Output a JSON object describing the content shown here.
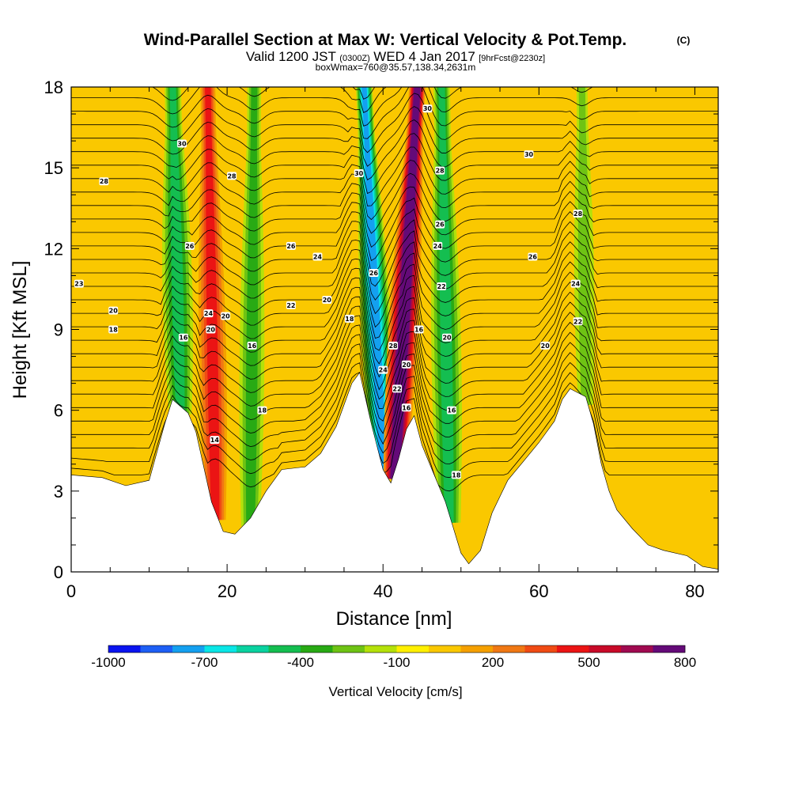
{
  "title": {
    "main": "Wind-Parallel Section at Max W: Vertical Velocity & Pot.Temp.",
    "copyright": "(C)",
    "valid_a": "Valid 1200 JST",
    "valid_utc": "(0300Z)",
    "valid_b": "WED 4 Jan 2017",
    "forecast": "[9hrFcst@2230z]",
    "box": "boxWmax=760@35.57,138.34,2631m"
  },
  "chart_data": {
    "type": "heatmap",
    "xlabel": "Distance [nm]",
    "ylabel": "Height [Kft MSL]",
    "xlim": [
      0,
      83
    ],
    "ylim": [
      0,
      18
    ],
    "x_ticks": [
      "0",
      "20",
      "40",
      "60",
      "80"
    ],
    "y_ticks": [
      "0",
      "3",
      "6",
      "9",
      "12",
      "15",
      "18"
    ],
    "colorbar": {
      "label": "Vertical Velocity [cm/s]",
      "tick_labels": [
        "-1000",
        "-700",
        "-400",
        "-100",
        "200",
        "500",
        "800"
      ],
      "colors": [
        "#0a14f0",
        "#1e5ff5",
        "#14a0f0",
        "#0ae6e6",
        "#0ad2a0",
        "#14be50",
        "#28aa14",
        "#6ec314",
        "#b4e10a",
        "#fff000",
        "#fac800",
        "#f5a000",
        "#f07814",
        "#f04b14",
        "#eb1414",
        "#c80a28",
        "#a00a50",
        "#640a78"
      ]
    },
    "terrain_kft": [
      [
        0,
        3.6
      ],
      [
        4,
        3.5
      ],
      [
        7,
        3.2
      ],
      [
        10,
        3.4
      ],
      [
        12,
        5.5
      ],
      [
        13,
        6.4
      ],
      [
        15,
        5.9
      ],
      [
        16,
        5.2
      ],
      [
        18,
        2.6
      ],
      [
        19.5,
        1.5
      ],
      [
        21,
        1.4
      ],
      [
        23,
        2.0
      ],
      [
        25,
        3.0
      ],
      [
        27,
        3.8
      ],
      [
        30,
        3.9
      ],
      [
        32,
        4.4
      ],
      [
        34,
        5.4
      ],
      [
        36,
        7.0
      ],
      [
        37,
        7.4
      ],
      [
        38.5,
        5.5
      ],
      [
        40,
        3.8
      ],
      [
        41,
        3.3
      ],
      [
        42,
        4.2
      ],
      [
        43,
        5.3
      ],
      [
        44,
        5.8
      ],
      [
        45,
        4.7
      ],
      [
        46,
        4.0
      ],
      [
        48,
        2.6
      ],
      [
        50,
        0.7
      ],
      [
        51,
        0.3
      ],
      [
        52.5,
        0.8
      ],
      [
        54,
        2.2
      ],
      [
        56,
        3.4
      ],
      [
        58,
        4.1
      ],
      [
        60,
        4.8
      ],
      [
        62,
        5.6
      ],
      [
        63,
        6.4
      ],
      [
        64,
        6.8
      ],
      [
        66,
        6.5
      ],
      [
        67,
        5.5
      ],
      [
        68,
        4.0
      ],
      [
        69,
        3.0
      ],
      [
        70,
        2.3
      ],
      [
        72,
        1.6
      ],
      [
        74,
        1.0
      ],
      [
        76,
        0.8
      ],
      [
        79,
        0.6
      ],
      [
        81,
        0.2
      ],
      [
        83,
        0.1
      ]
    ],
    "velocity_bands": [
      {
        "x_bottom": 14,
        "x_top": 13,
        "w": 1.2,
        "value": -400
      },
      {
        "x_bottom": 18.5,
        "x_top": 17.5,
        "w": 1.1,
        "value": 400
      },
      {
        "x_bottom": 23,
        "x_top": 23.5,
        "w": 1.0,
        "value": -300
      },
      {
        "x_bottom": 40,
        "x_top": 37.5,
        "w": 1.2,
        "value": -700
      },
      {
        "x_bottom": 41.5,
        "x_top": 44.5,
        "w": 1.2,
        "value": 800
      },
      {
        "x_bottom": 48.5,
        "x_top": 47.5,
        "w": 1.2,
        "value": -400
      },
      {
        "x_bottom": 66,
        "x_top": 65.5,
        "w": 0.8,
        "value": -200
      }
    ],
    "theta_contours": {
      "range": [
        14,
        30
      ],
      "step": 0.5,
      "labels": [
        {
          "x": 4.2,
          "y": 14.5,
          "text": "28"
        },
        {
          "x": 1.0,
          "y": 10.7,
          "text": "23"
        },
        {
          "x": 5.4,
          "y": 9.7,
          "text": "20"
        },
        {
          "x": 5.4,
          "y": 9.0,
          "text": "18"
        },
        {
          "x": 14.2,
          "y": 15.9,
          "text": "30"
        },
        {
          "x": 20.6,
          "y": 14.7,
          "text": "28"
        },
        {
          "x": 15.2,
          "y": 12.1,
          "text": "26"
        },
        {
          "x": 17.6,
          "y": 9.6,
          "text": "24"
        },
        {
          "x": 19.8,
          "y": 9.5,
          "text": "20"
        },
        {
          "x": 17.9,
          "y": 9.0,
          "text": "20"
        },
        {
          "x": 14.4,
          "y": 8.7,
          "text": "16"
        },
        {
          "x": 23.2,
          "y": 8.4,
          "text": "16"
        },
        {
          "x": 24.5,
          "y": 6.0,
          "text": "18"
        },
        {
          "x": 18.4,
          "y": 4.9,
          "text": "14"
        },
        {
          "x": 28.2,
          "y": 12.1,
          "text": "26"
        },
        {
          "x": 31.6,
          "y": 11.7,
          "text": "24"
        },
        {
          "x": 28.2,
          "y": 9.9,
          "text": "22"
        },
        {
          "x": 32.8,
          "y": 10.1,
          "text": "20"
        },
        {
          "x": 35.7,
          "y": 9.4,
          "text": "18"
        },
        {
          "x": 36.9,
          "y": 14.8,
          "text": "30"
        },
        {
          "x": 38.8,
          "y": 11.1,
          "text": "26"
        },
        {
          "x": 41.3,
          "y": 8.4,
          "text": "28"
        },
        {
          "x": 40.0,
          "y": 7.5,
          "text": "24"
        },
        {
          "x": 41.8,
          "y": 6.8,
          "text": "22"
        },
        {
          "x": 43.0,
          "y": 7.7,
          "text": "20"
        },
        {
          "x": 43.0,
          "y": 6.1,
          "text": "16"
        },
        {
          "x": 44.6,
          "y": 9.0,
          "text": "16"
        },
        {
          "x": 45.7,
          "y": 17.2,
          "text": "30"
        },
        {
          "x": 47.3,
          "y": 14.9,
          "text": "28"
        },
        {
          "x": 47.3,
          "y": 12.9,
          "text": "26"
        },
        {
          "x": 47.0,
          "y": 12.1,
          "text": "24"
        },
        {
          "x": 47.5,
          "y": 10.6,
          "text": "22"
        },
        {
          "x": 48.2,
          "y": 8.7,
          "text": "20"
        },
        {
          "x": 48.8,
          "y": 6.0,
          "text": "16"
        },
        {
          "x": 49.4,
          "y": 3.6,
          "text": "18"
        },
        {
          "x": 58.7,
          "y": 15.5,
          "text": "30"
        },
        {
          "x": 65.0,
          "y": 13.3,
          "text": "28"
        },
        {
          "x": 59.2,
          "y": 11.7,
          "text": "26"
        },
        {
          "x": 64.7,
          "y": 10.7,
          "text": "24"
        },
        {
          "x": 65.0,
          "y": 9.3,
          "text": "22"
        },
        {
          "x": 60.8,
          "y": 8.4,
          "text": "20"
        }
      ]
    },
    "grid": false
  }
}
